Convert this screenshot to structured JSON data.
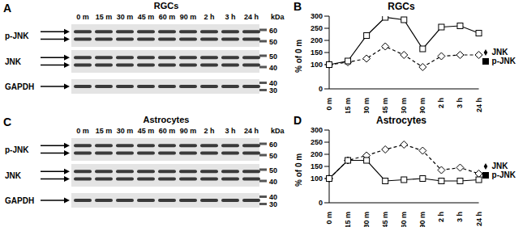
{
  "chart_data": [
    {
      "panel": "B",
      "type": "line",
      "title": "RGCs",
      "y_label": "% of 0 m",
      "categories": [
        "0 m",
        "15 m",
        "30 m",
        "45 m",
        "60 m",
        "90 m",
        "2 h",
        "3 h",
        "24 h"
      ],
      "ylim": [
        0,
        300
      ],
      "yticks": [
        0,
        50,
        100,
        150,
        200,
        250,
        300
      ],
      "grid": false,
      "legend": "right",
      "series": [
        {
          "name": "JNK",
          "color": "#000000",
          "marker": "diamond",
          "line_style": "dashed",
          "values": [
            100,
            110,
            125,
            175,
            140,
            90,
            135,
            140,
            140
          ]
        },
        {
          "name": "p-JNK",
          "color": "#000000",
          "marker": "square",
          "line_style": "solid",
          "values": [
            100,
            115,
            220,
            295,
            285,
            165,
            255,
            260,
            230
          ]
        }
      ]
    },
    {
      "panel": "D",
      "type": "line",
      "title": "Astrocytes",
      "y_label": "% of 0 m",
      "categories": [
        "0 m",
        "15 m",
        "30 m",
        "45 m",
        "60 m",
        "90 m",
        "2 h",
        "3 h",
        "24 h"
      ],
      "ylim": [
        0,
        300
      ],
      "yticks": [
        0,
        50,
        100,
        150,
        200,
        250,
        300
      ],
      "grid": false,
      "legend": "right",
      "series": [
        {
          "name": "JNK",
          "color": "#000000",
          "marker": "diamond",
          "line_style": "dashed",
          "values": [
            100,
            175,
            195,
            220,
            240,
            215,
            135,
            145,
            120
          ]
        },
        {
          "name": "p-JNK",
          "color": "#000000",
          "marker": "square",
          "line_style": "solid",
          "values": [
            100,
            175,
            175,
            90,
            95,
            100,
            90,
            90,
            95
          ]
        }
      ]
    }
  ],
  "blots": [
    {
      "panel": "A",
      "title": "RGCs",
      "lanes": [
        "0 m",
        "15 m",
        "30 m",
        "45 m",
        "60 m",
        "90 m",
        "2 h",
        "3 h",
        "24 h"
      ],
      "marker_header": "kDa",
      "rows": [
        {
          "label": "p-JNK",
          "markers": [
            60,
            50
          ]
        },
        {
          "label": "JNK",
          "markers": [
            50,
            40
          ]
        },
        {
          "label": "GAPDH",
          "markers": [
            40,
            30
          ]
        }
      ]
    },
    {
      "panel": "C",
      "title": "Astrocytes",
      "lanes": [
        "0 m",
        "15 m",
        "30 m",
        "45 m",
        "60 m",
        "90 m",
        "2 h",
        "3 h",
        "24 h"
      ],
      "marker_header": "kDa",
      "rows": [
        {
          "label": "p-JNK",
          "markers": [
            60,
            50
          ]
        },
        {
          "label": "JNK",
          "markers": [
            50,
            40
          ]
        },
        {
          "label": "GAPDH",
          "markers": [
            40,
            30
          ]
        }
      ]
    }
  ]
}
